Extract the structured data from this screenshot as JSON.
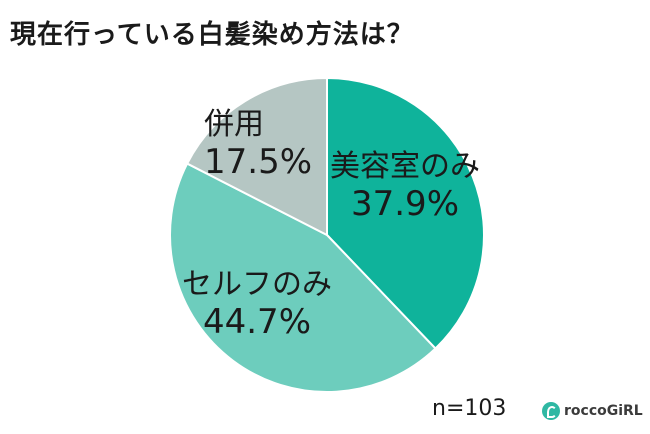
{
  "title": "現在行っている白髪染め方法は？",
  "sample": "n=103",
  "logo": {
    "text": "roccoGiRL",
    "color": "#2fb8a3"
  },
  "chart_data": {
    "type": "pie",
    "title": "現在行っている白髪染め方法は？",
    "start_angle_deg": 0,
    "direction": "clockwise",
    "slices": [
      {
        "label": "美容室のみ",
        "value": 37.9,
        "pct_text": "37.9%",
        "color": "#0fb39b"
      },
      {
        "label": "セルフのみ",
        "value": 44.7,
        "pct_text": "44.7%",
        "color": "#6dcdbd"
      },
      {
        "label": "併用",
        "value": 17.5,
        "pct_text": "17.5%",
        "color": "#b5c6c3"
      }
    ]
  }
}
